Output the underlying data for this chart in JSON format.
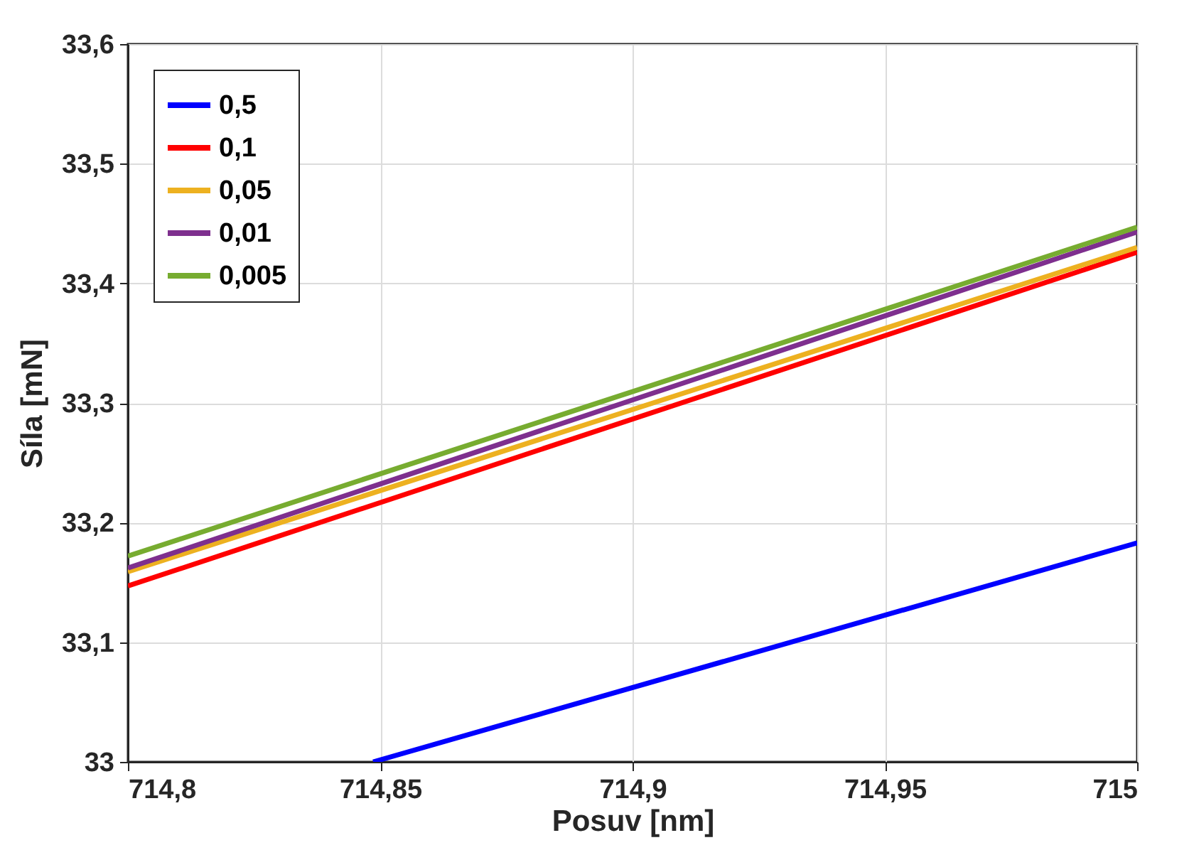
{
  "chart_data": {
    "type": "line",
    "xlabel": "Posuv [nm]",
    "ylabel": "Síla [mN]",
    "xlim": [
      714.8,
      715
    ],
    "ylim": [
      33,
      33.6
    ],
    "xticks": [
      {
        "value": 714.8,
        "label": "714,8"
      },
      {
        "value": 714.85,
        "label": "714,85"
      },
      {
        "value": 714.9,
        "label": "714,9"
      },
      {
        "value": 714.95,
        "label": "714,95"
      },
      715
    ],
    "yticks": [
      33,
      {
        "value": 33.1,
        "label": "33,1"
      },
      {
        "value": 33.2,
        "label": "33,2"
      },
      {
        "value": 33.3,
        "label": "33,3"
      },
      {
        "value": 33.4,
        "label": "33,4"
      },
      {
        "value": 33.5,
        "label": "33,5"
      },
      {
        "value": 33.6,
        "label": "33,6"
      }
    ],
    "grid": true,
    "legend": "top left",
    "marker": "none",
    "line_style": "solid",
    "series": [
      {
        "name": "0,5",
        "color": "#0000ff",
        "x": [
          714.8486,
          715
        ],
        "values": [
          33.0,
          33.183
        ]
      },
      {
        "name": "0,1",
        "color": "#ff0000",
        "x": [
          714.8,
          715
        ],
        "values": [
          33.147,
          33.426
        ]
      },
      {
        "name": "0,05",
        "color": "#edb120",
        "x": [
          714.8,
          715
        ],
        "values": [
          33.159,
          33.43
        ]
      },
      {
        "name": "0,01",
        "color": "#7e2f8e",
        "x": [
          714.8,
          715
        ],
        "values": [
          33.162,
          33.443
        ]
      },
      {
        "name": "0,005",
        "color": "#77ac30",
        "x": [
          714.8,
          715
        ],
        "values": [
          33.172,
          33.447
        ]
      }
    ]
  }
}
